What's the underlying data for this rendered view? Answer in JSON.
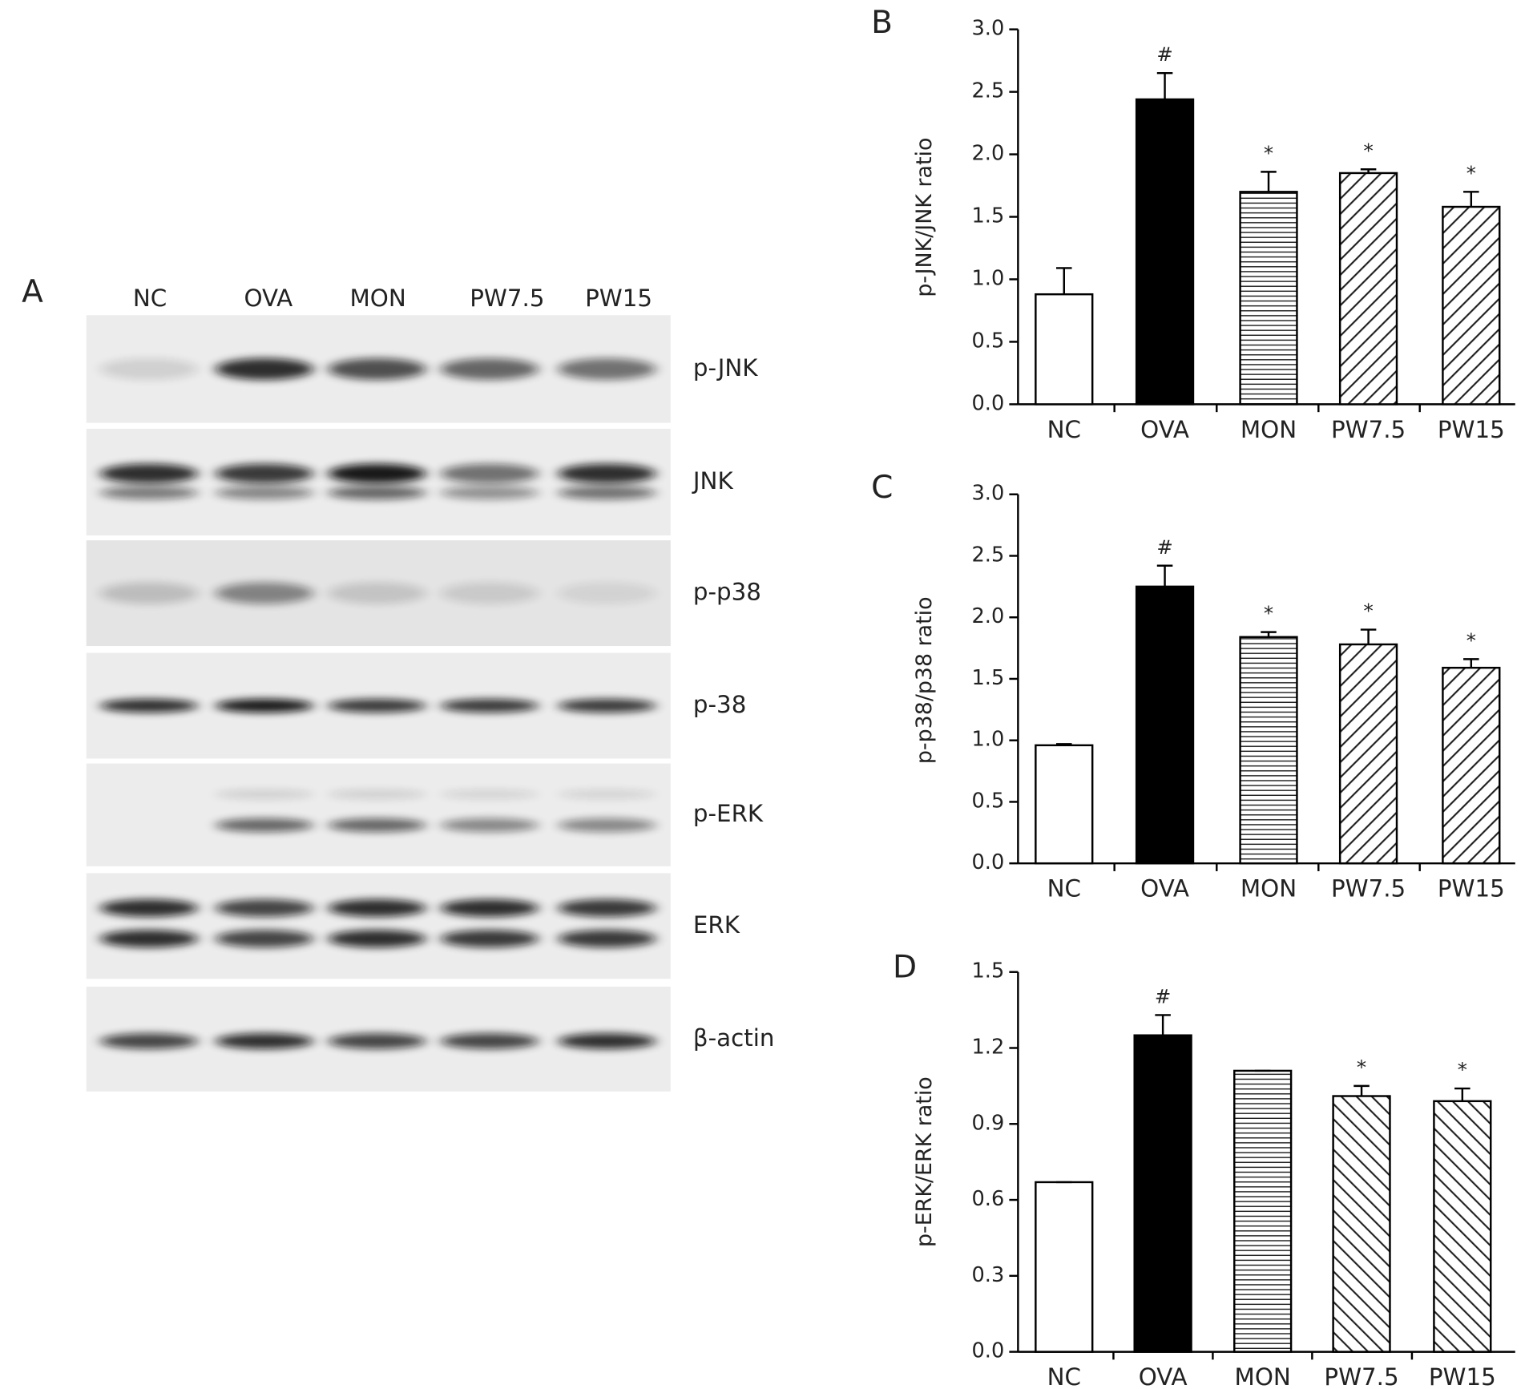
{
  "blot": {
    "panel_label": "A",
    "lanes": [
      "NC",
      "OVA",
      "MON",
      "PW7.5",
      "PW15"
    ],
    "rows": [
      "p-JNK",
      "JNK",
      "p-p38",
      "p-38",
      "p-ERK",
      "ERK",
      "β-actin"
    ]
  },
  "chart_data": [
    {
      "type": "bar",
      "panel_label": "B",
      "ylabel": "p-JNK/JNK ratio",
      "categories": [
        "NC",
        "OVA",
        "MON",
        "PW7.5",
        "PW15"
      ],
      "values": [
        0.88,
        2.44,
        1.7,
        1.85,
        1.58
      ],
      "errors": [
        0.21,
        0.21,
        0.16,
        0.03,
        0.12
      ],
      "annotations": [
        null,
        "#",
        "*",
        "*",
        "*"
      ],
      "styles": [
        "white",
        "black",
        "hlines",
        "diag-up",
        "diag-up"
      ],
      "ylim": [
        0,
        3
      ],
      "yticks": [
        {
          "value": 0,
          "label": "0.0"
        },
        {
          "value": 0.5,
          "label": "0.5"
        },
        {
          "value": 1,
          "label": "1.0"
        },
        {
          "value": 1.5,
          "label": "1.5"
        },
        {
          "value": 2,
          "label": "2.0"
        },
        {
          "value": 2.5,
          "label": "2.5"
        },
        {
          "value": 3,
          "label": "3.0"
        }
      ]
    },
    {
      "type": "bar",
      "panel_label": "C",
      "ylabel": "p-p38/p38 ratio",
      "categories": [
        "NC",
        "OVA",
        "MON",
        "PW7.5",
        "PW15"
      ],
      "values": [
        0.96,
        2.25,
        1.84,
        1.78,
        1.59
      ],
      "errors": [
        0.01,
        0.17,
        0.04,
        0.12,
        0.07
      ],
      "annotations": [
        null,
        "#",
        "*",
        "*",
        "*"
      ],
      "styles": [
        "white",
        "black",
        "hlines",
        "diag-up",
        "diag-up"
      ],
      "ylim": [
        0,
        3
      ],
      "yticks": [
        {
          "value": 0,
          "label": "0.0"
        },
        {
          "value": 0.5,
          "label": "0.5"
        },
        {
          "value": 1,
          "label": "1.0"
        },
        {
          "value": 1.5,
          "label": "1.5"
        },
        {
          "value": 2,
          "label": "2.0"
        },
        {
          "value": 2.5,
          "label": "2.5"
        },
        {
          "value": 3,
          "label": "3.0"
        }
      ]
    },
    {
      "type": "bar",
      "panel_label": "D",
      "ylabel": "p-ERK/ERK ratio",
      "categories": [
        "NC",
        "OVA",
        "MON",
        "PW7.5",
        "PW15"
      ],
      "values": [
        0.67,
        1.25,
        1.11,
        1.01,
        0.99
      ],
      "errors": [
        0,
        0.08,
        0,
        0.04,
        0.05
      ],
      "annotations": [
        null,
        "#",
        null,
        "*",
        "*"
      ],
      "styles": [
        "white",
        "black",
        "hlines",
        "diag-down",
        "diag-down"
      ],
      "ylim": [
        0,
        1.5
      ],
      "yticks": [
        {
          "value": 0,
          "label": "0.0"
        },
        {
          "value": 0.3,
          "label": "0.3"
        },
        {
          "value": 0.6,
          "label": "0.6"
        },
        {
          "value": 0.9,
          "label": "0.9"
        },
        {
          "value": 1.2,
          "label": "1.2"
        },
        {
          "value": 1.5,
          "label": "1.5"
        }
      ]
    }
  ]
}
